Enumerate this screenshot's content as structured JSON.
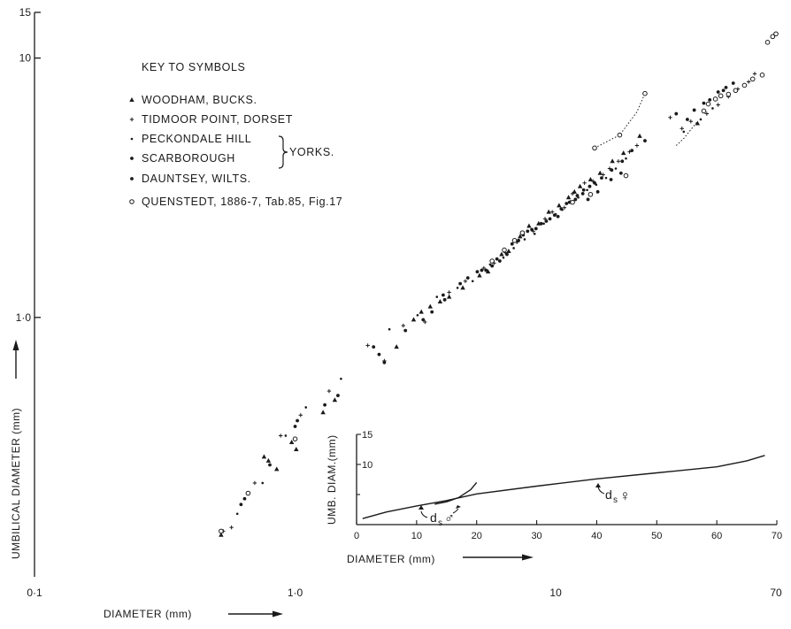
{
  "chart_data": [
    {
      "type": "scatter",
      "xscale": "log",
      "yscale": "log",
      "xlim": [
        0.1,
        70
      ],
      "ylim": [
        0.1,
        15
      ],
      "xlabel": "DIAMETER (mm)",
      "ylabel": "UMBILICAL DIAMETER (mm)",
      "x_ticks": [
        {
          "value": 0.1,
          "label": "0·1"
        },
        {
          "value": 1,
          "label": "1·0"
        },
        {
          "value": 10,
          "label": "10"
        },
        {
          "value": 70,
          "label": "70"
        }
      ],
      "y_ticks": [
        {
          "value": 1,
          "label": "1·0"
        },
        {
          "value": 10,
          "label": "10"
        },
        {
          "value": 15,
          "label": "15"
        }
      ],
      "legend": {
        "title": "KEY TO SYMBOLS",
        "position": "top-left",
        "yorks_brace_label": "YORKS.",
        "entries": [
          {
            "key": "woodham",
            "label": "WOODHAM, BUCKS.",
            "marker": "triangle"
          },
          {
            "key": "tidmoor",
            "label": "TIDMOOR POINT, DORSET",
            "marker": "plus"
          },
          {
            "key": "peckondale",
            "label": "PECKONDALE HILL",
            "marker": "small-dot"
          },
          {
            "key": "scarborough",
            "label": "SCARBOROUGH",
            "marker": "dot"
          },
          {
            "key": "dauntsey",
            "label": "DAUNTSEY, WILTS.",
            "marker": "dot"
          },
          {
            "key": "quenstedt",
            "label": "QUENSTEDT, 1886-7, Tab.85, Fig.17",
            "marker": "open-circle"
          }
        ]
      },
      "series": [
        {
          "key": "woodham",
          "points": [
            [
              0.52,
              0.145
            ],
            [
              0.76,
              0.29
            ],
            [
              0.79,
              0.28
            ],
            [
              0.85,
              0.26
            ],
            [
              0.97,
              0.33
            ],
            [
              1.01,
              0.31
            ],
            [
              1.28,
              0.43
            ],
            [
              1.42,
              0.48
            ],
            [
              2.45,
              0.77
            ],
            [
              2.85,
              0.98
            ],
            [
              3.05,
              1.05
            ],
            [
              3.3,
              1.1
            ],
            [
              3.6,
              1.15
            ],
            [
              3.9,
              1.2
            ],
            [
              4.4,
              1.3
            ],
            [
              5.1,
              1.45
            ],
            [
              5.5,
              1.5
            ],
            [
              6.2,
              1.75
            ],
            [
              6.6,
              1.8
            ],
            [
              7.3,
              2.05
            ],
            [
              7.9,
              2.25
            ],
            [
              8.6,
              2.3
            ],
            [
              9.4,
              2.55
            ],
            [
              10.3,
              2.7
            ],
            [
              11.2,
              2.9
            ],
            [
              11.8,
              3.05
            ],
            [
              12.4,
              3.2
            ],
            [
              13.6,
              3.4
            ],
            [
              14.8,
              3.6
            ],
            [
              16.5,
              4.0
            ],
            [
              18.2,
              4.3
            ],
            [
              21,
              5.0
            ],
            [
              35,
              5.6
            ]
          ]
        },
        {
          "key": "tidmoor",
          "points": [
            [
              0.53,
              0.15
            ],
            [
              0.57,
              0.155
            ],
            [
              0.7,
              0.23
            ],
            [
              0.88,
              0.35
            ],
            [
              1.05,
              0.42
            ],
            [
              1.35,
              0.52
            ],
            [
              1.9,
              0.78
            ],
            [
              2.2,
              0.68
            ],
            [
              2.6,
              0.93
            ],
            [
              3.15,
              0.96
            ],
            [
              3.9,
              1.25
            ],
            [
              4.5,
              1.38
            ],
            [
              5.3,
              1.55
            ],
            [
              5.8,
              1.62
            ],
            [
              6.4,
              1.78
            ],
            [
              7.1,
              1.95
            ],
            [
              8.2,
              2.15
            ],
            [
              9.1,
              2.4
            ],
            [
              9.7,
              2.55
            ],
            [
              10.8,
              2.65
            ],
            [
              11.6,
              3.0
            ],
            [
              12.9,
              3.3
            ],
            [
              13.9,
              3.35
            ],
            [
              15.2,
              3.55
            ],
            [
              16.1,
              3.75
            ],
            [
              17.4,
              4.0
            ],
            [
              19.2,
              4.35
            ],
            [
              20.5,
              4.6
            ],
            [
              27.5,
              5.9
            ],
            [
              30.5,
              5.35
            ],
            [
              33,
              5.7
            ],
            [
              38,
              6.1
            ],
            [
              42,
              6.6
            ],
            [
              46,
              7.1
            ],
            [
              50,
              7.6
            ],
            [
              55,
              8.1
            ],
            [
              58,
              8.7
            ]
          ]
        },
        {
          "key": "peckondale",
          "points": [
            [
              0.6,
              0.175
            ],
            [
              0.75,
              0.23
            ],
            [
              0.92,
              0.35
            ],
            [
              1.1,
              0.45
            ],
            [
              1.5,
              0.58
            ],
            [
              2.3,
              0.9
            ],
            [
              2.95,
              1.02
            ],
            [
              3.5,
              1.2
            ],
            [
              4.2,
              1.3
            ],
            [
              4.8,
              1.38
            ],
            [
              5.6,
              1.6
            ],
            [
              6.3,
              1.7
            ],
            [
              6.9,
              1.85
            ],
            [
              7.6,
              2.0
            ],
            [
              8.3,
              2.1
            ],
            [
              9.0,
              2.3
            ],
            [
              10.0,
              2.5
            ],
            [
              10.6,
              2.6
            ],
            [
              11.4,
              2.8
            ],
            [
              12.2,
              2.9
            ],
            [
              13.2,
              3.1
            ],
            [
              14.3,
              3.25
            ],
            [
              15.6,
              3.45
            ],
            [
              17.0,
              3.75
            ],
            [
              18.6,
              4.1
            ],
            [
              31,
              5.2
            ],
            [
              36,
              5.8
            ],
            [
              40,
              6.4
            ]
          ]
        },
        {
          "key": "scarborough",
          "points": [
            [
              0.64,
              0.2
            ],
            [
              1.0,
              0.38
            ],
            [
              1.46,
              0.5
            ],
            [
              2.1,
              0.72
            ],
            [
              3.7,
              1.22
            ],
            [
              4.3,
              1.35
            ],
            [
              5.0,
              1.5
            ],
            [
              5.4,
              1.52
            ],
            [
              5.95,
              1.68
            ],
            [
              6.8,
              1.92
            ],
            [
              7.5,
              2.08
            ],
            [
              8.1,
              2.18
            ],
            [
              8.8,
              2.3
            ],
            [
              9.5,
              2.4
            ],
            [
              10.2,
              2.45
            ],
            [
              11.0,
              2.75
            ],
            [
              11.9,
              2.85
            ],
            [
              12.7,
              3.0
            ],
            [
              13.3,
              2.85
            ],
            [
              14.5,
              3.05
            ],
            [
              16.3,
              3.4
            ],
            [
              17.8,
              3.6
            ],
            [
              34,
              6.3
            ],
            [
              39,
              6.9
            ],
            [
              44,
              7.5
            ],
            [
              48,
              8.0
            ]
          ]
        },
        {
          "key": "dauntsey",
          "points": [
            [
              0.62,
              0.19
            ],
            [
              0.8,
              0.27
            ],
            [
              1.02,
              0.4
            ],
            [
              1.3,
              0.46
            ],
            [
              2.0,
              0.77
            ],
            [
              2.2,
              0.67
            ],
            [
              2.65,
              0.89
            ],
            [
              3.1,
              0.98
            ],
            [
              3.35,
              1.05
            ],
            [
              3.75,
              1.17
            ],
            [
              4.6,
              1.42
            ],
            [
              5.2,
              1.52
            ],
            [
              5.7,
              1.58
            ],
            [
              6.1,
              1.65
            ],
            [
              6.5,
              1.75
            ],
            [
              7.2,
              1.98
            ],
            [
              7.8,
              2.15
            ],
            [
              8.4,
              2.2
            ],
            [
              9.2,
              2.35
            ],
            [
              9.9,
              2.48
            ],
            [
              10.5,
              2.62
            ],
            [
              11.3,
              2.78
            ],
            [
              12.1,
              2.95
            ],
            [
              12.8,
              3.1
            ],
            [
              13.5,
              3.2
            ],
            [
              14.1,
              3.3
            ],
            [
              15.0,
              3.45
            ],
            [
              16.4,
              3.7
            ],
            [
              18.0,
              4.0
            ],
            [
              19.6,
              4.4
            ],
            [
              22.0,
              4.8
            ],
            [
              29,
              6.1
            ],
            [
              32,
              5.8
            ],
            [
              37,
              6.7
            ],
            [
              42,
              7.4
            ],
            [
              45,
              7.7
            ]
          ]
        },
        {
          "key": "quenstedt",
          "points": [
            [
              0.52,
              0.15
            ],
            [
              0.66,
              0.21
            ],
            [
              1.0,
              0.34
            ],
            [
              5.7,
              1.65
            ],
            [
              6.35,
              1.82
            ],
            [
              6.95,
              1.98
            ],
            [
              7.45,
              2.12
            ],
            [
              11.6,
              2.78
            ],
            [
              13.6,
              2.98
            ],
            [
              18.6,
              3.52
            ],
            [
              14.1,
              4.5
            ],
            [
              17.6,
              5.05
            ],
            [
              22.0,
              7.3
            ],
            [
              37,
              6.25
            ],
            [
              38.5,
              6.65
            ],
            [
              41,
              6.95
            ],
            [
              43,
              7.15
            ],
            [
              46,
              7.25
            ],
            [
              49,
              7.5
            ],
            [
              53,
              7.85
            ],
            [
              57,
              8.3
            ],
            [
              62,
              8.6
            ],
            [
              65,
              11.5
            ],
            [
              68,
              12.1
            ],
            [
              70,
              12.4
            ]
          ]
        }
      ],
      "dotted_curve": [
        [
          14.1,
          4.5
        ],
        [
          17.6,
          5.05
        ],
        [
          20.5,
          6.2
        ],
        [
          22.0,
          7.3
        ]
      ],
      "dotted_curve_right": [
        [
          29,
          4.6
        ],
        [
          31,
          4.9
        ],
        [
          33,
          5.3
        ],
        [
          35,
          5.7
        ]
      ]
    },
    {
      "type": "line",
      "xlim": [
        0,
        70
      ],
      "ylim": [
        0,
        15
      ],
      "xlabel": "DIAMETER (mm)",
      "ylabel": "UMB. DIAM.(mm)",
      "x_ticks": [
        0,
        10,
        20,
        30,
        40,
        50,
        60,
        70
      ],
      "y_ticks": [
        {
          "value": 10,
          "label": "10"
        },
        {
          "value": 15,
          "label": "15"
        }
      ],
      "series": [
        {
          "name": "d_s ♂",
          "points": [
            [
              13,
              3.4
            ],
            [
              15,
              3.8
            ],
            [
              17,
              4.5
            ],
            [
              19,
              5.8
            ],
            [
              20,
              7.0
            ]
          ]
        },
        {
          "name": "d_s ♀",
          "points": [
            [
              1,
              1.0
            ],
            [
              5,
              2.1
            ],
            [
              10,
              3.1
            ],
            [
              15,
              4.0
            ],
            [
              20,
              5.1
            ],
            [
              30,
              6.4
            ],
            [
              40,
              7.6
            ],
            [
              50,
              8.6
            ],
            [
              60,
              9.6
            ],
            [
              65,
              10.6
            ],
            [
              68,
              11.5
            ]
          ]
        }
      ],
      "annotations": [
        {
          "label": "d",
          "subscript": "s",
          "symbol": "♂"
        },
        {
          "label": "d",
          "subscript": "s",
          "symbol": "♀"
        }
      ]
    }
  ]
}
